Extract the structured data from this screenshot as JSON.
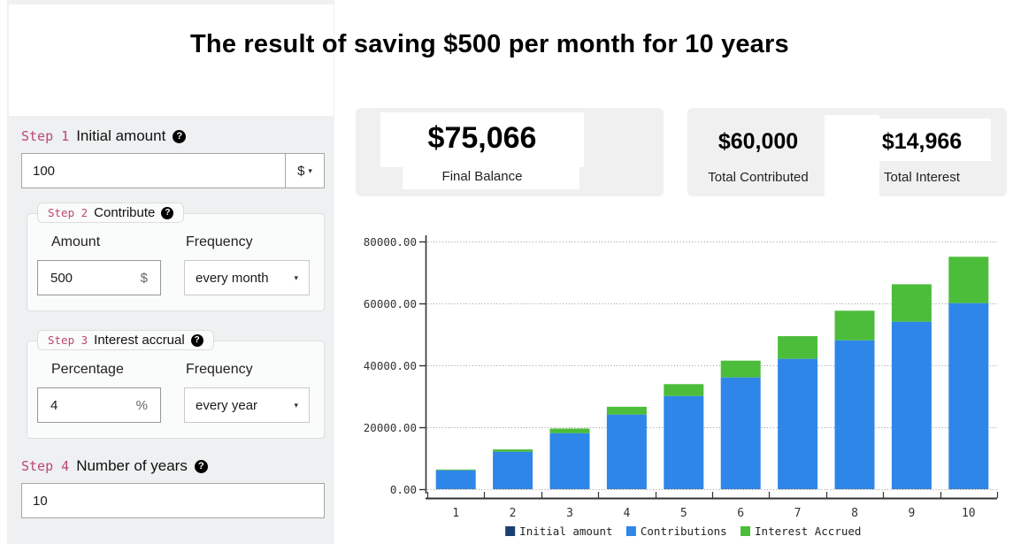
{
  "title": "The result of saving $500 per month for 10 years",
  "icons": {
    "help": "?",
    "caret": "▾"
  },
  "sidebar": {
    "step1": {
      "label": "Step 1",
      "title": "Initial amount",
      "value": "100",
      "currency": "$"
    },
    "step2": {
      "label": "Step 2",
      "title": "Contribute",
      "amount_label": "Amount",
      "amount_value": "500",
      "amount_suffix": "$",
      "frequency_label": "Frequency",
      "frequency_value": "every month"
    },
    "step3": {
      "label": "Step 3",
      "title": "Interest accrual",
      "percentage_label": "Percentage",
      "percentage_value": "4",
      "percentage_suffix": "%",
      "frequency_label": "Frequency",
      "frequency_value": "every year"
    },
    "step4": {
      "label": "Step 4",
      "title": "Number of years",
      "value": "10"
    }
  },
  "summary": {
    "final_balance": "$75,066",
    "final_balance_label": "Final Balance",
    "total_contributed": "$60,000",
    "total_contributed_label": "Total Contributed",
    "total_interest": "$14,966",
    "total_interest_label": "Total Interest"
  },
  "chart_data": {
    "type": "bar",
    "stacked": true,
    "categories": [
      "1",
      "2",
      "3",
      "4",
      "5",
      "6",
      "7",
      "8",
      "9",
      "10"
    ],
    "series": [
      {
        "name": "Initial amount",
        "color": "#1b3f6e",
        "values": [
          100,
          100,
          100,
          100,
          100,
          100,
          100,
          100,
          100,
          100
        ]
      },
      {
        "name": "Contributions",
        "color": "#2e86e8",
        "values": [
          6000,
          12000,
          18000,
          24000,
          30000,
          36000,
          42000,
          48000,
          54000,
          60000
        ]
      },
      {
        "name": "Interest Accrued",
        "color": "#4cbd3a",
        "values": [
          244,
          738,
          1491,
          2515,
          3820,
          5416,
          7317,
          9534,
          12080,
          14966
        ]
      }
    ],
    "totals": [
      6344,
      12838,
      19591,
      26615,
      33920,
      41516,
      49417,
      57634,
      66180,
      75066
    ],
    "ylim": [
      0,
      80000
    ],
    "yticks": [
      {
        "value": 0,
        "label": "0.00"
      },
      {
        "value": 20000,
        "label": "20000.00"
      },
      {
        "value": 40000,
        "label": "40000.00"
      },
      {
        "value": 60000,
        "label": "60000.00"
      },
      {
        "value": 80000,
        "label": "80000.00"
      }
    ],
    "grid": "dotted-horizontal",
    "legend_position": "bottom",
    "axis_color": "#333333",
    "grid_color": "#999999",
    "label_color": "#333333"
  }
}
